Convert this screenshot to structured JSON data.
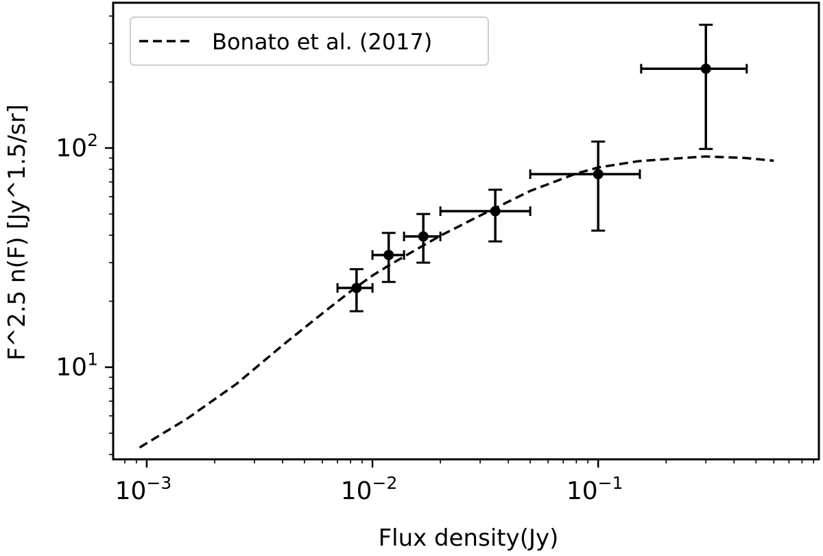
{
  "chart_data": {
    "type": "scatter",
    "xlabel": "Flux density(Jy)",
    "ylabel": "F^2.5 n(F) [Jy^1.5/sr]",
    "xscale": "log",
    "yscale": "log",
    "xlim": [
      0.00071,
      0.95
    ],
    "ylim": [
      3.8,
      460
    ],
    "xticks": [
      {
        "value": 0.001,
        "base": "10",
        "exp": "−3"
      },
      {
        "value": 0.01,
        "base": "10",
        "exp": "−2"
      },
      {
        "value": 0.1,
        "base": "10",
        "exp": "−1"
      }
    ],
    "yticks": [
      {
        "value": 10,
        "base": "10",
        "exp": "1"
      },
      {
        "value": 100,
        "base": "10",
        "exp": "2"
      }
    ],
    "grid": false,
    "legend": {
      "position": "top-left",
      "entries": [
        "Bonato et al. (2017)"
      ]
    },
    "series": [
      {
        "name": "Bonato et al. (2017)",
        "style": "dashed",
        "color": "#000000",
        "x": [
          0.00093,
          0.0015,
          0.0025,
          0.004,
          0.006,
          0.008,
          0.01,
          0.012,
          0.015,
          0.02,
          0.03,
          0.05,
          0.08,
          0.1,
          0.15,
          0.2,
          0.3,
          0.45,
          0.6
        ],
        "y": [
          4.3,
          5.8,
          8.4,
          12.6,
          17.6,
          22.2,
          26.2,
          29.4,
          33.6,
          39.8,
          49.2,
          63.7,
          76.5,
          81.5,
          87.0,
          89.0,
          91.5,
          90.0,
          87.5
        ]
      },
      {
        "name": "",
        "style": "points",
        "color": "#000000",
        "points": [
          {
            "x": 0.0085,
            "y": 23.0,
            "xerr": [
              0.007,
              0.01
            ],
            "yerr": [
              18.0,
              28.0
            ]
          },
          {
            "x": 0.0118,
            "y": 32.5,
            "xerr": [
              0.01,
              0.0138
            ],
            "yerr": [
              24.5,
              41.0
            ]
          },
          {
            "x": 0.0168,
            "y": 39.5,
            "xerr": [
              0.0138,
              0.02
            ],
            "yerr": [
              30.0,
              50.0
            ]
          },
          {
            "x": 0.035,
            "y": 51.5,
            "xerr": [
              0.02,
              0.05
            ],
            "yerr": [
              37.5,
              64.5
            ]
          },
          {
            "x": 0.1,
            "y": 76.0,
            "xerr": [
              0.05,
              0.153
            ],
            "yerr": [
              42.0,
              107.0
            ]
          },
          {
            "x": 0.3,
            "y": 230.0,
            "xerr": [
              0.155,
              0.455
            ],
            "yerr": [
              99.0,
              365.0
            ]
          }
        ]
      }
    ]
  }
}
